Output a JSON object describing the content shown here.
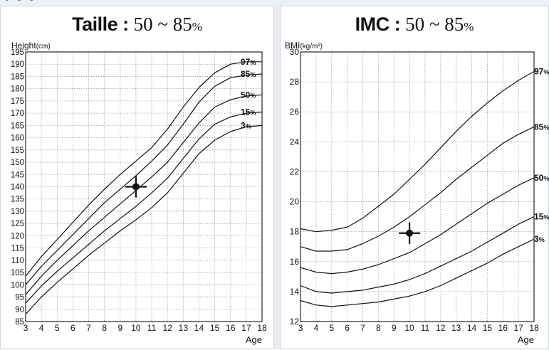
{
  "chart_data": [
    {
      "type": "line",
      "title": "Taille",
      "title_range": "50 ~ 85",
      "title_unit": "%",
      "ylabel": "Height",
      "ylabel_unit": "(cm)",
      "xlabel": "Age",
      "xlim": [
        3,
        18
      ],
      "ylim": [
        85,
        195
      ],
      "x_ticks": [
        3,
        4,
        5,
        6,
        7,
        8,
        9,
        10,
        11,
        12,
        13,
        14,
        15,
        16,
        17,
        18
      ],
      "y_ticks": [
        85,
        90,
        95,
        100,
        105,
        110,
        115,
        120,
        125,
        130,
        135,
        140,
        145,
        150,
        155,
        160,
        165,
        170,
        175,
        180,
        185,
        190,
        195
      ],
      "grid": true,
      "line_color": "#111111",
      "series": [
        {
          "name": "97",
          "x": [
            3,
            4,
            5,
            6,
            7,
            8,
            9,
            10,
            11,
            12,
            13,
            14,
            15,
            16,
            17,
            18
          ],
          "values": [
            103.5,
            111.5,
            118.5,
            125.5,
            132.5,
            139,
            145,
            150.5,
            156,
            163.5,
            172.5,
            180.5,
            186.5,
            190,
            191,
            191
          ]
        },
        {
          "name": "85",
          "x": [
            3,
            4,
            5,
            6,
            7,
            8,
            9,
            10,
            11,
            12,
            13,
            14,
            15,
            16,
            17,
            18
          ],
          "values": [
            100,
            107.5,
            114,
            120.5,
            127,
            133.5,
            139,
            144.5,
            150.5,
            157,
            165.5,
            174.5,
            181,
            184.5,
            185.5,
            186
          ]
        },
        {
          "name": "50",
          "x": [
            3,
            4,
            5,
            6,
            7,
            8,
            9,
            10,
            11,
            12,
            13,
            14,
            15,
            16,
            17,
            18
          ],
          "values": [
            96,
            103.5,
            110,
            116,
            122,
            127.5,
            133,
            138.5,
            144,
            150,
            158,
            166,
            172.5,
            175.5,
            177,
            177.5
          ]
        },
        {
          "name": "15",
          "x": [
            3,
            4,
            5,
            6,
            7,
            8,
            9,
            10,
            11,
            12,
            13,
            14,
            15,
            16,
            17,
            18
          ],
          "values": [
            92.5,
            99.5,
            105.5,
            111,
            116.5,
            122,
            127,
            132,
            137.5,
            143.5,
            151.5,
            159.5,
            165.5,
            168.5,
            170,
            170.5
          ]
        },
        {
          "name": "3",
          "x": [
            3,
            4,
            5,
            6,
            7,
            8,
            9,
            10,
            11,
            12,
            13,
            14,
            15,
            16,
            17,
            18
          ],
          "values": [
            88,
            95,
            101,
            106.5,
            112,
            117,
            122,
            126.5,
            131.5,
            137.5,
            145.5,
            153.5,
            159,
            162.5,
            164.5,
            165
          ]
        }
      ],
      "marker": {
        "x": 10,
        "y": 140
      }
    },
    {
      "type": "line",
      "title": "IMC",
      "title_range": "50 ~ 85",
      "title_unit": "%",
      "ylabel": "BMI",
      "ylabel_unit": "(kg/m²)",
      "xlabel": "Age",
      "xlim": [
        3,
        18
      ],
      "ylim": [
        12,
        30
      ],
      "x_ticks": [
        3,
        4,
        5,
        6,
        7,
        8,
        9,
        10,
        11,
        12,
        13,
        14,
        15,
        16,
        17,
        18
      ],
      "y_ticks": [
        12,
        14,
        16,
        18,
        20,
        22,
        24,
        26,
        28,
        30
      ],
      "grid": true,
      "line_color": "#111111",
      "series": [
        {
          "name": "97",
          "x": [
            3,
            4,
            5,
            6,
            7,
            8,
            9,
            10,
            11,
            12,
            13,
            14,
            15,
            16,
            17,
            18
          ],
          "values": [
            18.2,
            18,
            18.1,
            18.3,
            18.9,
            19.7,
            20.5,
            21.5,
            22.5,
            23.6,
            24.7,
            25.7,
            26.6,
            27.4,
            28.1,
            28.7
          ]
        },
        {
          "name": "85",
          "x": [
            3,
            4,
            5,
            6,
            7,
            8,
            9,
            10,
            11,
            12,
            13,
            14,
            15,
            16,
            17,
            18
          ],
          "values": [
            17,
            16.7,
            16.7,
            16.8,
            17.2,
            17.7,
            18.3,
            19,
            19.8,
            20.6,
            21.5,
            22.3,
            23.1,
            23.9,
            24.5,
            25
          ]
        },
        {
          "name": "50",
          "x": [
            3,
            4,
            5,
            6,
            7,
            8,
            9,
            10,
            11,
            12,
            13,
            14,
            15,
            16,
            17,
            18
          ],
          "values": [
            15.6,
            15.3,
            15.2,
            15.3,
            15.5,
            15.8,
            16.2,
            16.6,
            17.2,
            17.8,
            18.5,
            19.2,
            19.9,
            20.5,
            21.1,
            21.6
          ]
        },
        {
          "name": "15",
          "x": [
            3,
            4,
            5,
            6,
            7,
            8,
            9,
            10,
            11,
            12,
            13,
            14,
            15,
            16,
            17,
            18
          ],
          "values": [
            14.4,
            14,
            13.9,
            14,
            14.1,
            14.3,
            14.5,
            14.8,
            15.2,
            15.7,
            16.2,
            16.7,
            17.3,
            17.9,
            18.5,
            19
          ]
        },
        {
          "name": "3",
          "x": [
            3,
            4,
            5,
            6,
            7,
            8,
            9,
            10,
            11,
            12,
            13,
            14,
            15,
            16,
            17,
            18
          ],
          "values": [
            13.4,
            13.1,
            13,
            13.1,
            13.2,
            13.3,
            13.5,
            13.7,
            14,
            14.4,
            14.9,
            15.4,
            15.9,
            16.5,
            17,
            17.5
          ]
        }
      ],
      "marker": {
        "x": 10,
        "y": 17.9
      }
    }
  ]
}
